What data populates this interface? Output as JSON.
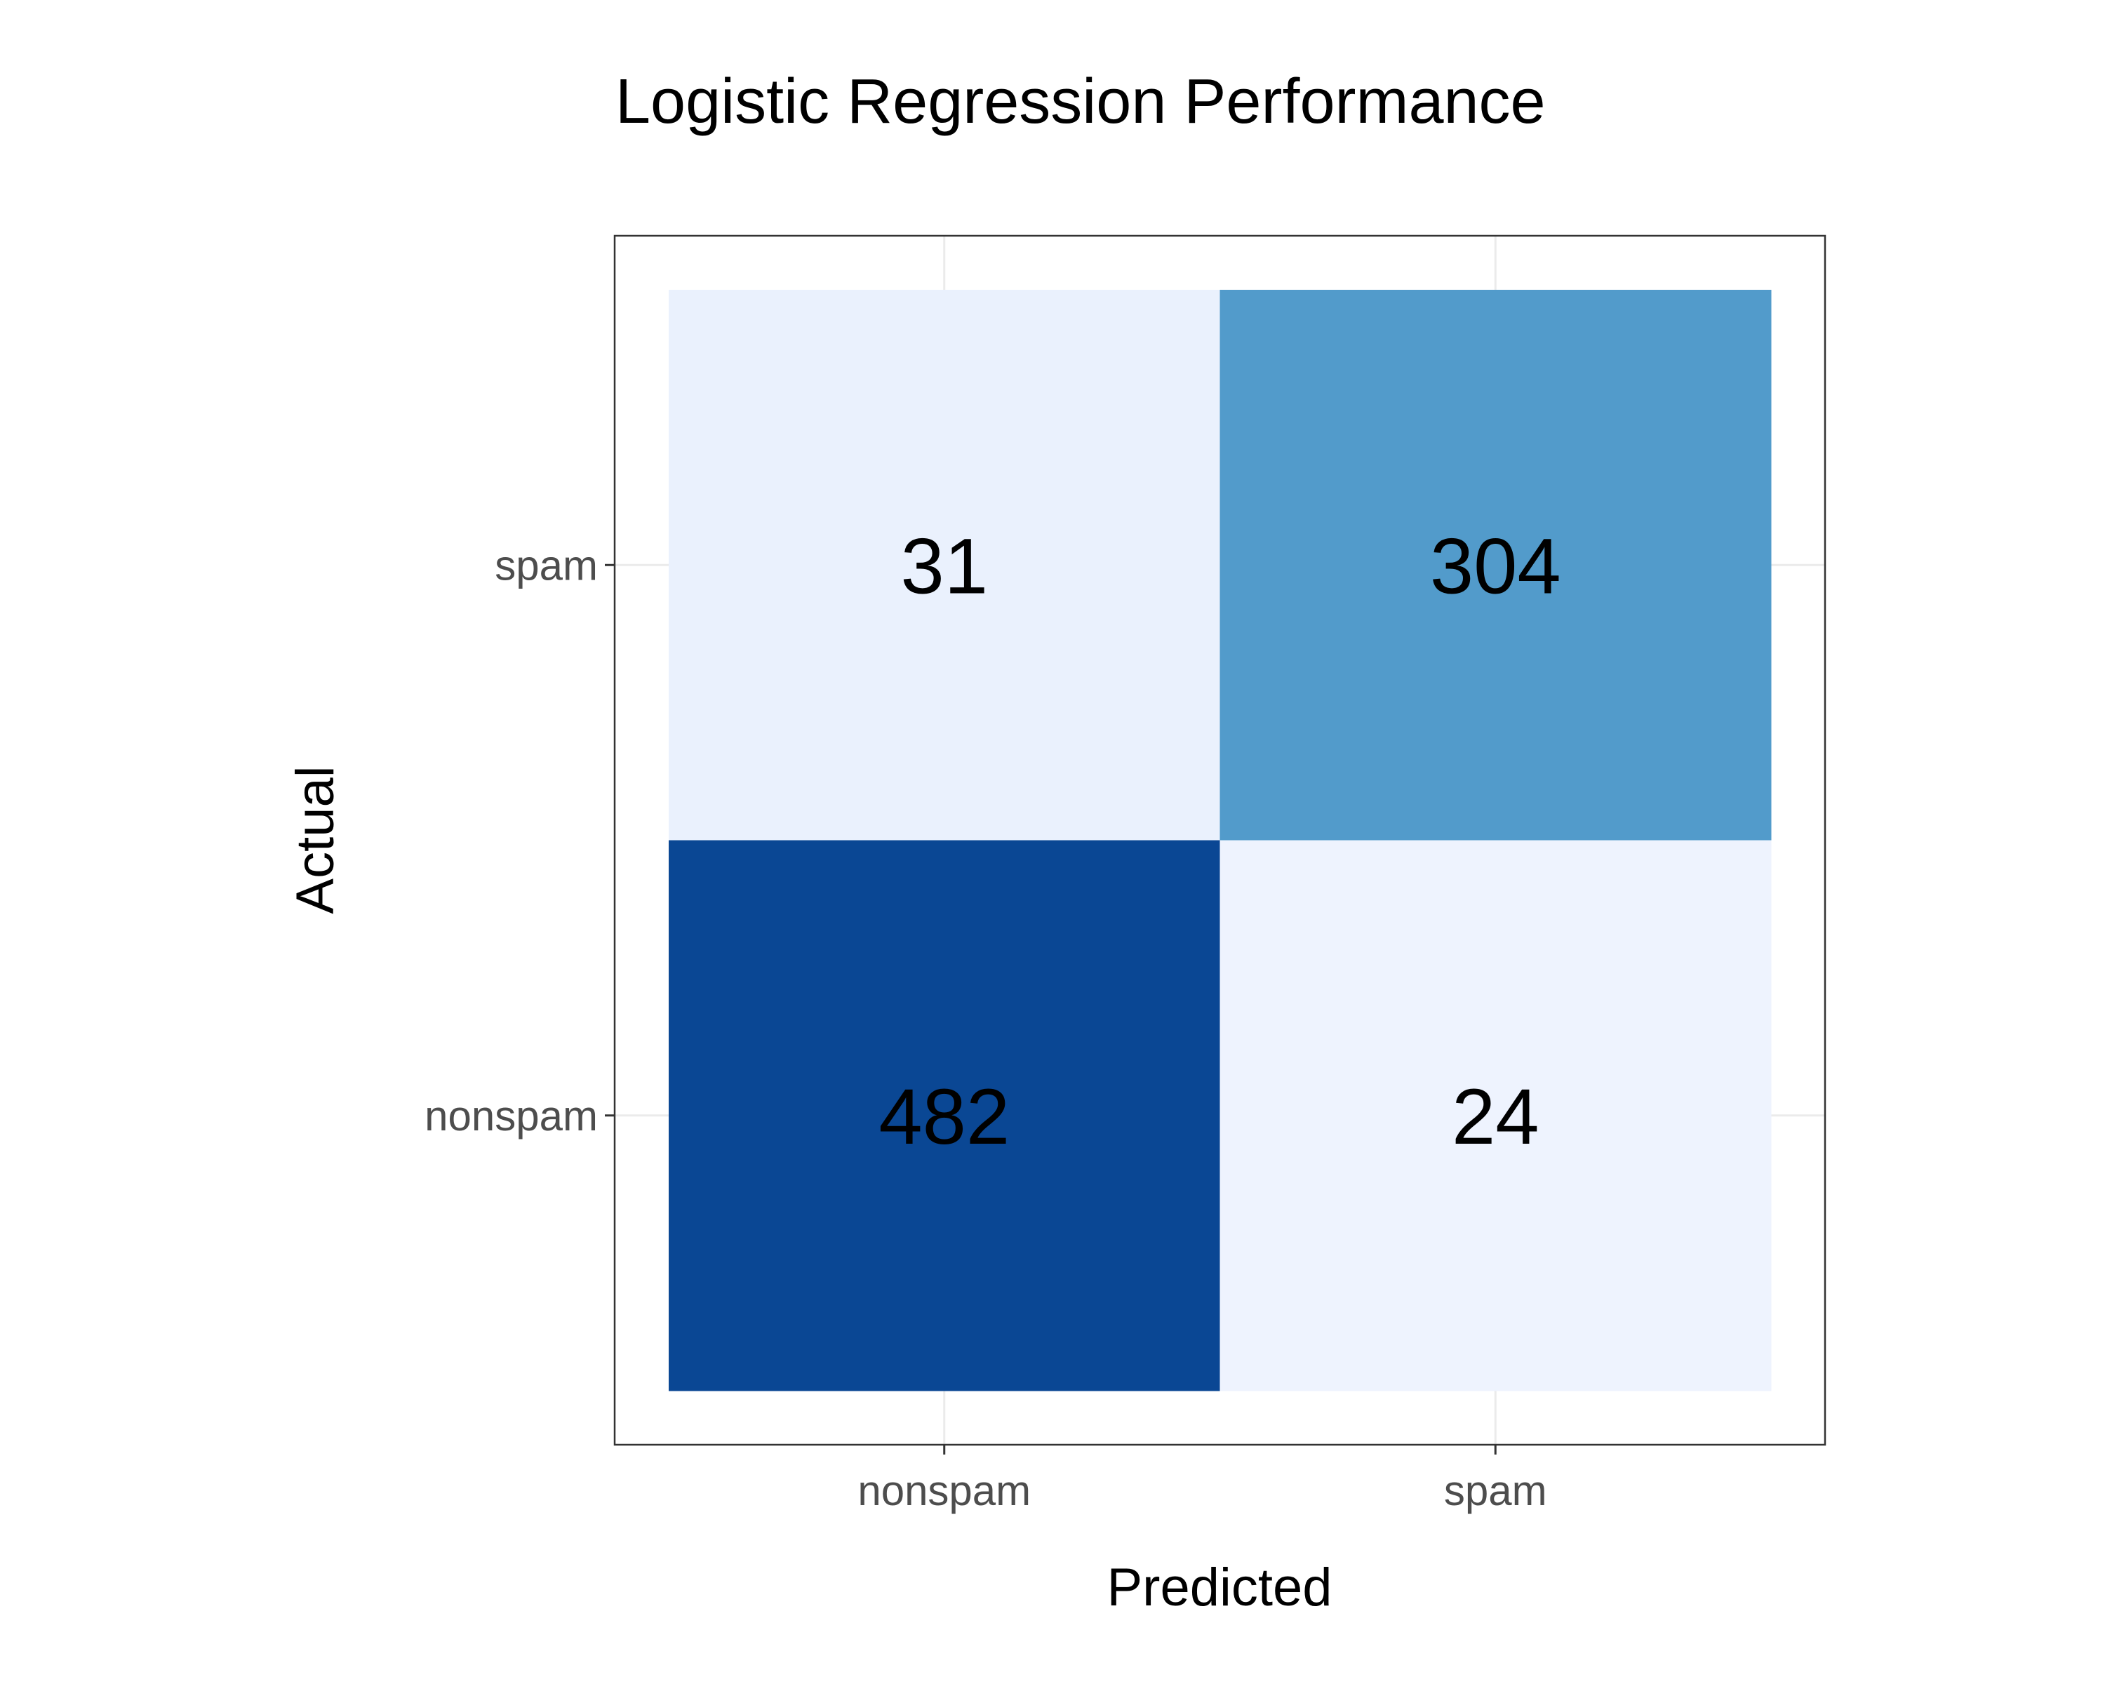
{
  "chart_data": {
    "type": "heatmap",
    "title": "Logistic Regression Performance",
    "xlabel": "Predicted",
    "ylabel": "Actual",
    "x_categories": [
      "nonspam",
      "spam"
    ],
    "y_categories": [
      "nonspam",
      "spam"
    ],
    "cells": [
      {
        "predicted": "nonspam",
        "actual": "spam",
        "value": 31,
        "color": "#eaf1fd"
      },
      {
        "predicted": "spam",
        "actual": "spam",
        "value": 304,
        "color": "#529bcb"
      },
      {
        "predicted": "nonspam",
        "actual": "nonspam",
        "value": 482,
        "color": "#0a4794"
      },
      {
        "predicted": "spam",
        "actual": "nonspam",
        "value": 24,
        "color": "#eef3fe"
      }
    ],
    "legend": "none",
    "grid": true
  }
}
